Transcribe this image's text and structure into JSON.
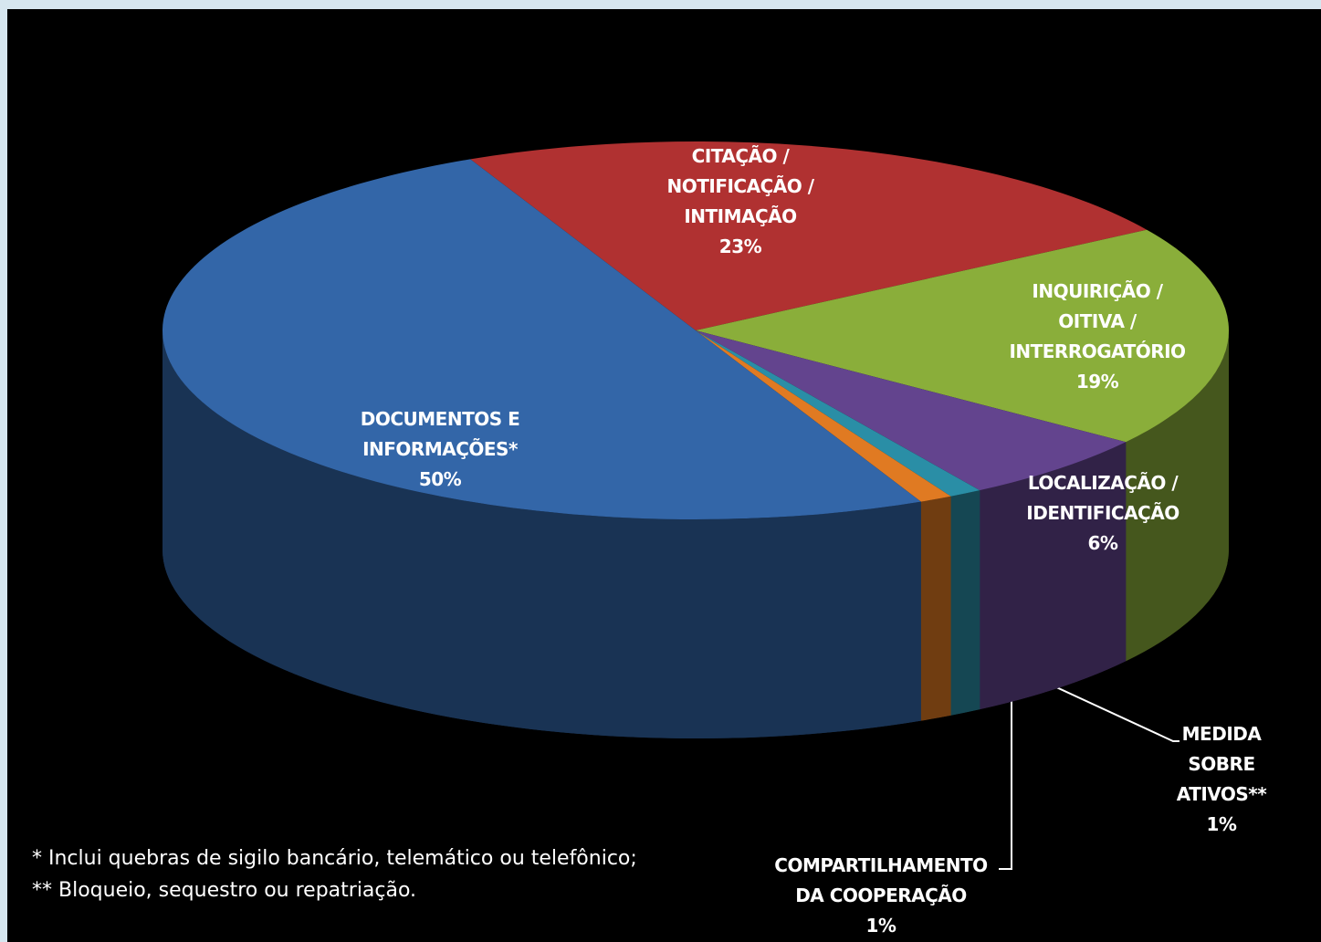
{
  "chart_data": {
    "type": "pie3d",
    "categories": [
      "CITAÇÃO /\nNOTIFICAÇÃO /\nINTIMAÇÃO",
      "INQUIRIÇÃO /\nOITIVA /\nINTERROGATÓRIO",
      "LOCALIZAÇÃO /\nIDENTIFICAÇÃO",
      "MEDIDA\nSOBRE\nATIVOS**",
      "COMPARTILHAMENTO\nDA COOPERAÇÃO",
      "DOCUMENTOS E\nINFORMAÇÕES*"
    ],
    "values": [
      23,
      19,
      6,
      1,
      1,
      50
    ],
    "value_labels": [
      "23%",
      "19%",
      "6%",
      "1%",
      "1%",
      "50%"
    ],
    "colors": [
      "#b03131",
      "#8aae3a",
      "#63448e",
      "#2a8ea6",
      "#e07a22",
      "#3366a8"
    ],
    "notes": [
      "* Inclui quebras de sigilo bancário, telemático ou telefônico;",
      "** Bloqueio, sequestro ou repatriação."
    ]
  }
}
